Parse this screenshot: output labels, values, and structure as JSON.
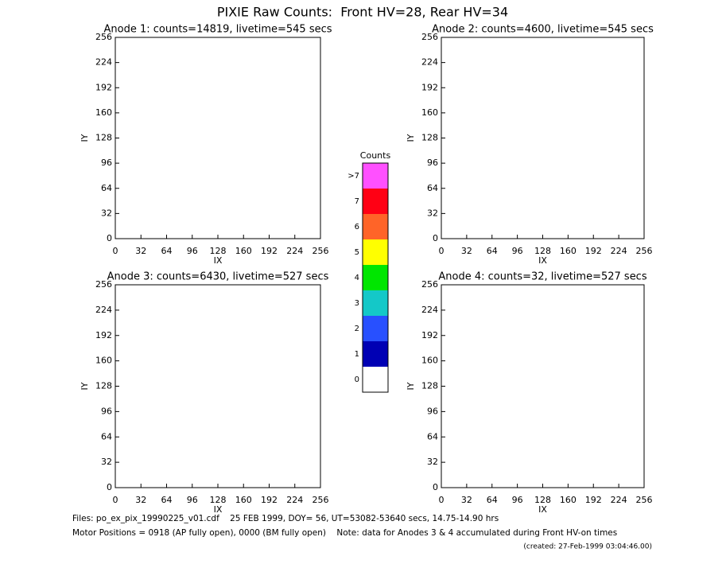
{
  "title": "PIXIE Raw Counts:  Front HV=28, Rear HV=34",
  "chart_data": [
    {
      "type": "heatmap",
      "title": "Anode 1: counts=14819, livetime=545 secs",
      "x_label": "IX",
      "y_label": "IY",
      "xlim": [
        0,
        256
      ],
      "ylim": [
        0,
        256
      ],
      "xticks": [
        0,
        32,
        64,
        96,
        128,
        160,
        192,
        224,
        256
      ],
      "yticks": [
        0,
        32,
        64,
        96,
        128,
        160,
        192,
        224,
        256
      ]
    },
    {
      "type": "heatmap",
      "title": "Anode 2: counts=4600, livetime=545 secs",
      "x_label": "IX",
      "y_label": "IY",
      "xlim": [
        0,
        256
      ],
      "ylim": [
        0,
        256
      ],
      "xticks": [
        0,
        32,
        64,
        96,
        128,
        160,
        192,
        224,
        256
      ],
      "yticks": [
        0,
        32,
        64,
        96,
        128,
        160,
        192,
        224,
        256
      ]
    },
    {
      "type": "heatmap",
      "title": "Anode 3: counts=6430, livetime=527 secs",
      "x_label": "IX",
      "y_label": "IY",
      "xlim": [
        0,
        256
      ],
      "ylim": [
        0,
        256
      ],
      "xticks": [
        0,
        32,
        64,
        96,
        128,
        160,
        192,
        224,
        256
      ],
      "yticks": [
        0,
        32,
        64,
        96,
        128,
        160,
        192,
        224,
        256
      ]
    },
    {
      "type": "heatmap",
      "title": "Anode 4: counts=32, livetime=527 secs",
      "x_label": "IX",
      "y_label": "IY",
      "xlim": [
        0,
        256
      ],
      "ylim": [
        0,
        256
      ],
      "xticks": [
        0,
        32,
        64,
        96,
        128,
        160,
        192,
        224,
        256
      ],
      "yticks": [
        0,
        32,
        64,
        96,
        128,
        160,
        192,
        224,
        256
      ]
    }
  ],
  "colorbar": {
    "title": "Counts",
    "labels": [
      "0",
      "1",
      "2",
      "3",
      "4",
      "5",
      "6",
      "7",
      ">7"
    ],
    "colors": [
      "#ffffff",
      "#0000b4",
      "#2850ff",
      "#14c8c8",
      "#00e600",
      "#ffff00",
      "#ff6428",
      "#ff0014",
      "#ff50ff"
    ]
  },
  "footer": {
    "files": "Files: po_ex_pix_19990225_v01.cdf    25 FEB 1999, DOY= 56, UT=53082-53640 secs, 14.75-14.90 hrs",
    "motor": "Motor Positions = 0918 (AP fully open), 0000 (BM fully open)    Note: data for Anodes 3 & 4 accumulated during Front HV-on times",
    "created": "(created: 27-Feb-1999 03:04:46.00)"
  }
}
